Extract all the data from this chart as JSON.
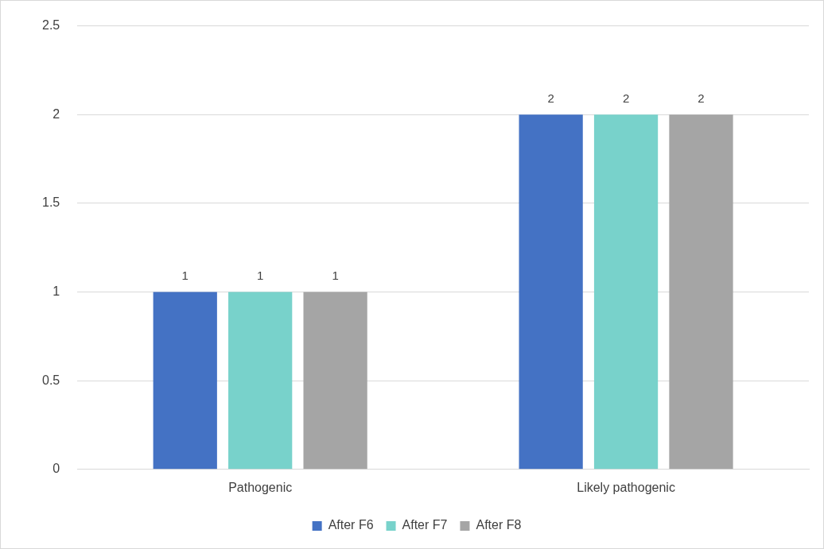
{
  "chart_data": {
    "type": "bar",
    "categories": [
      "Pathogenic",
      "Likely pathogenic"
    ],
    "series": [
      {
        "name": "After F6",
        "color": "#4472c4",
        "values": [
          1,
          2
        ]
      },
      {
        "name": "After F7",
        "color": "#78d2cb",
        "values": [
          1,
          2
        ]
      },
      {
        "name": "After F8",
        "color": "#a5a5a5",
        "values": [
          1,
          2
        ]
      }
    ],
    "ylim": [
      0,
      2.5
    ],
    "yticks": [
      0,
      0.5,
      1,
      1.5,
      2,
      2.5
    ],
    "grid": "y",
    "legend": "bottom",
    "data_labels": true
  }
}
